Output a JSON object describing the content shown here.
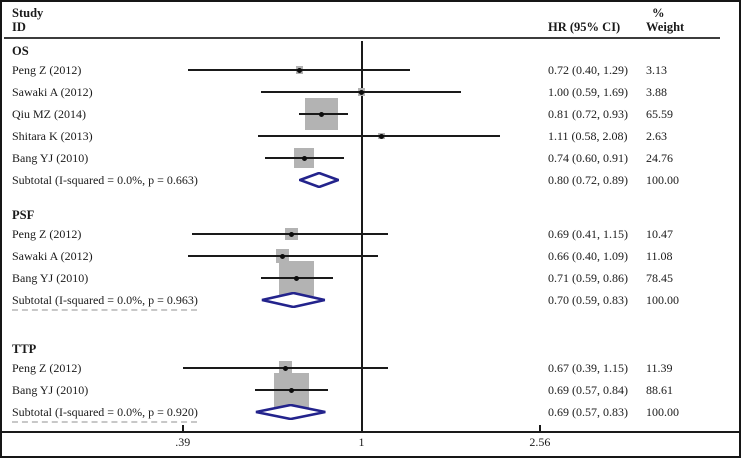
{
  "header": {
    "col_study_line1": "Study",
    "col_study_line2": "ID",
    "col_hr": "HR (95% CI)",
    "col_weight_line1": "%",
    "col_weight_line2": "Weight"
  },
  "colors": {
    "line": "#1a1a1a",
    "box_gray": "#b3b3b3",
    "diamond_navy": "#23238c",
    "remnant_gray": "#c8c8c8"
  },
  "chart_data": {
    "type": "forest",
    "x_scale": "log10",
    "null_value": 1,
    "xlim": [
      0.39,
      2.56
    ],
    "axis_ticks": [
      {
        "label": ".39",
        "value": 0.39
      },
      {
        "label": "1",
        "value": 1
      },
      {
        "label": "2.56",
        "value": 2.56
      }
    ],
    "groups": [
      {
        "label": "OS",
        "redacted_note": false,
        "studies": [
          {
            "name": "Peng Z (2012)",
            "hr": 0.72,
            "lo": 0.4,
            "hi": 1.29,
            "ci_text": "0.72 (0.40, 1.29)",
            "weight": 3.13,
            "weight_text": "3.13"
          },
          {
            "name": "Sawaki A (2012)",
            "hr": 1.0,
            "lo": 0.59,
            "hi": 1.69,
            "ci_text": "1.00 (0.59, 1.69)",
            "weight": 3.88,
            "weight_text": "3.88"
          },
          {
            "name": "Qiu MZ (2014)",
            "hr": 0.81,
            "lo": 0.72,
            "hi": 0.93,
            "ci_text": "0.81 (0.72, 0.93)",
            "weight": 65.59,
            "weight_text": "65.59"
          },
          {
            "name": "Shitara K (2013)",
            "hr": 1.11,
            "lo": 0.58,
            "hi": 2.08,
            "ci_text": "1.11 (0.58, 2.08)",
            "weight": 2.63,
            "weight_text": "2.63"
          },
          {
            "name": "Bang YJ (2010)",
            "hr": 0.74,
            "lo": 0.6,
            "hi": 0.91,
            "ci_text": "0.74 (0.60, 0.91)",
            "weight": 24.76,
            "weight_text": "24.76"
          }
        ],
        "subtotal": {
          "name": "Subtotal  (I-squared = 0.0%, p = 0.663)",
          "hr": 0.8,
          "lo": 0.72,
          "hi": 0.89,
          "ci_text": "0.80 (0.72, 0.89)",
          "weight_text": "100.00"
        }
      },
      {
        "label": "PSF",
        "redacted_note": true,
        "studies": [
          {
            "name": "Peng Z (2012)",
            "hr": 0.69,
            "lo": 0.41,
            "hi": 1.15,
            "ci_text": "0.69 (0.41, 1.15)",
            "weight": 10.47,
            "weight_text": "10.47"
          },
          {
            "name": "Sawaki A (2012)",
            "hr": 0.66,
            "lo": 0.4,
            "hi": 1.09,
            "ci_text": "0.66 (0.40, 1.09)",
            "weight": 11.08,
            "weight_text": "11.08"
          },
          {
            "name": "Bang YJ (2010)",
            "hr": 0.71,
            "lo": 0.59,
            "hi": 0.86,
            "ci_text": "0.71 (0.59, 0.86)",
            "weight": 78.45,
            "weight_text": "78.45"
          }
        ],
        "subtotal": {
          "name": "Subtotal  (I-squared = 0.0%, p = 0.963)",
          "hr": 0.7,
          "lo": 0.59,
          "hi": 0.83,
          "ci_text": "0.70 (0.59, 0.83)",
          "weight_text": "100.00"
        }
      },
      {
        "label": "TTP",
        "redacted_note": true,
        "studies": [
          {
            "name": "Peng Z (2012)",
            "hr": 0.67,
            "lo": 0.39,
            "hi": 1.15,
            "ci_text": "0.67 (0.39, 1.15)",
            "weight": 11.39,
            "weight_text": "11.39"
          },
          {
            "name": "Bang YJ (2010)",
            "hr": 0.69,
            "lo": 0.57,
            "hi": 0.84,
            "ci_text": "0.69 (0.57, 0.84)",
            "weight": 88.61,
            "weight_text": "88.61"
          }
        ],
        "subtotal": {
          "name": "Subtotal  (I-squared = 0.0%, p = 0.920)",
          "hr": 0.69,
          "lo": 0.57,
          "hi": 0.83,
          "ci_text": "0.69 (0.57, 0.83)",
          "weight_text": "100.00"
        }
      }
    ]
  }
}
